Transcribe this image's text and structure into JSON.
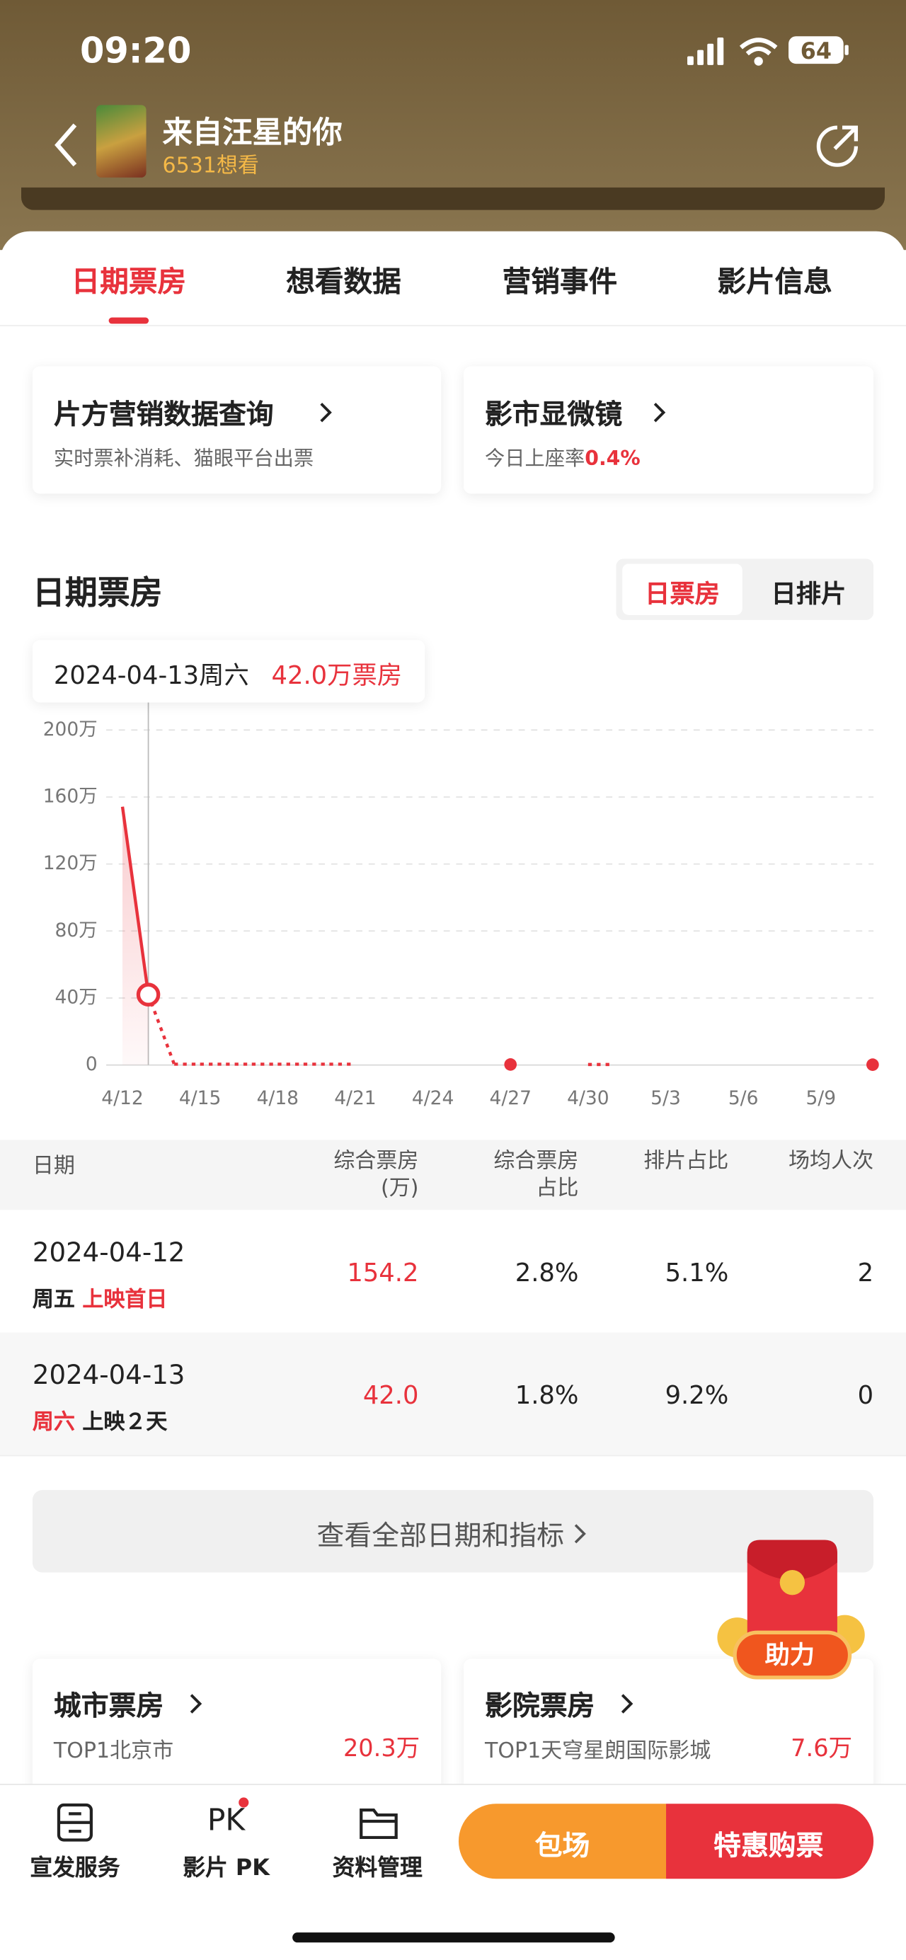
{
  "status_bar": {
    "time": "09:20",
    "battery": "64"
  },
  "header": {
    "title": "来自汪星的你",
    "want_count": "6531想看"
  },
  "tabs": [
    "日期票房",
    "想看数据",
    "营销事件",
    "影片信息"
  ],
  "cards": [
    {
      "title": "片方营销数据查询",
      "subtitle": "实时票补消耗、猫眼平台出票"
    },
    {
      "title": "影市显微镜",
      "subtitle": "今日上座率",
      "highlight": "0.4%"
    }
  ],
  "section": {
    "title": "日期票房",
    "toggle": [
      "日票房",
      "日排片"
    ]
  },
  "tooltip": {
    "date": "2024-04-13",
    "weekday": "周六",
    "value": "42.0万票房"
  },
  "chart_data": {
    "type": "line",
    "categories": [
      "4/12",
      null,
      null,
      "4/15",
      null,
      null,
      "4/18",
      null,
      null,
      "4/21",
      null,
      null,
      "4/24",
      null,
      null,
      "4/27",
      null,
      null,
      "4/30",
      null,
      null,
      "5/3",
      null,
      null,
      "5/6",
      null,
      null,
      "5/9",
      null,
      null
    ],
    "series": [
      {
        "color": "#e8323c",
        "values": [
          154.2,
          42.0,
          0.5,
          0.5,
          0.5,
          0.5,
          0.5,
          0.5,
          0.5,
          0.5,
          null,
          null,
          null,
          null,
          null,
          0.3,
          null,
          null,
          0.3,
          0.3,
          null,
          null,
          null,
          null,
          null,
          null,
          null,
          null,
          null,
          0.2
        ]
      }
    ],
    "selected_index": 1,
    "ylim": [
      0,
      200
    ],
    "yticks": [
      0,
      {
        "value": 40,
        "label": "40万"
      },
      {
        "value": 80,
        "label": "80万"
      },
      {
        "value": 120,
        "label": "120万"
      },
      {
        "value": 160,
        "label": "160万"
      },
      {
        "value": 200,
        "label": "200万"
      }
    ],
    "grid": true
  },
  "table": {
    "headers": [
      "日期",
      [
        "综合票房",
        "(万)"
      ],
      [
        "综合票房",
        "占比"
      ],
      "排片占比",
      "场均人次"
    ],
    "rows": [
      {
        "date": "2024-04-12",
        "weekday": "周五",
        "note": "上映首日",
        "cells": [
          "154.2",
          "2.8%",
          "5.1%",
          "2"
        ]
      },
      {
        "date": "2024-04-13",
        "weekday": "周六",
        "note": "上映２天",
        "cells": [
          "42.0",
          "1.8%",
          "9.2%",
          "0"
        ]
      }
    ]
  },
  "more_button": "查看全部日期和指标",
  "float_badge": "助力",
  "rank_cards": [
    {
      "title": "城市票房",
      "top": "TOP1北京市",
      "value": "20.3万"
    },
    {
      "title": "影院票房",
      "top": "TOP1天穹星朗国际影城",
      "value": "7.6万"
    }
  ],
  "bottom_nav": {
    "pk_icon": "PK",
    "items": [
      "宣发服务",
      "影片 PK",
      "资料管理"
    ],
    "buttons": [
      "包场",
      "特惠购票"
    ]
  }
}
